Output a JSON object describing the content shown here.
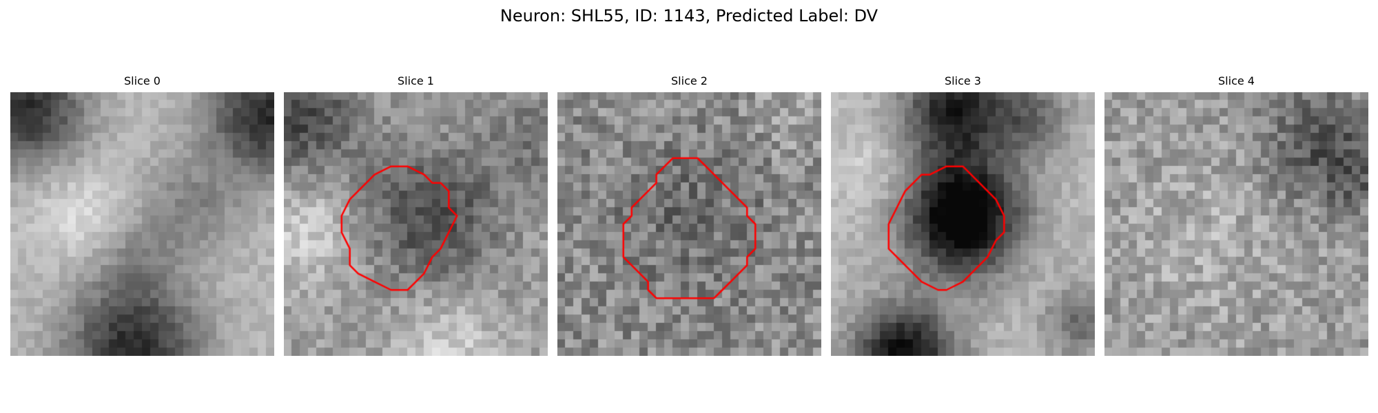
{
  "figure": {
    "title": "Neuron: SHL55, ID: 1143, Predicted Label: DV",
    "contour_color": "#ff0000"
  },
  "panels": [
    {
      "title": "Slice 0"
    },
    {
      "title": "Slice 1"
    },
    {
      "title": "Slice 2"
    },
    {
      "title": "Slice 3"
    },
    {
      "title": "Slice 4"
    }
  ]
}
